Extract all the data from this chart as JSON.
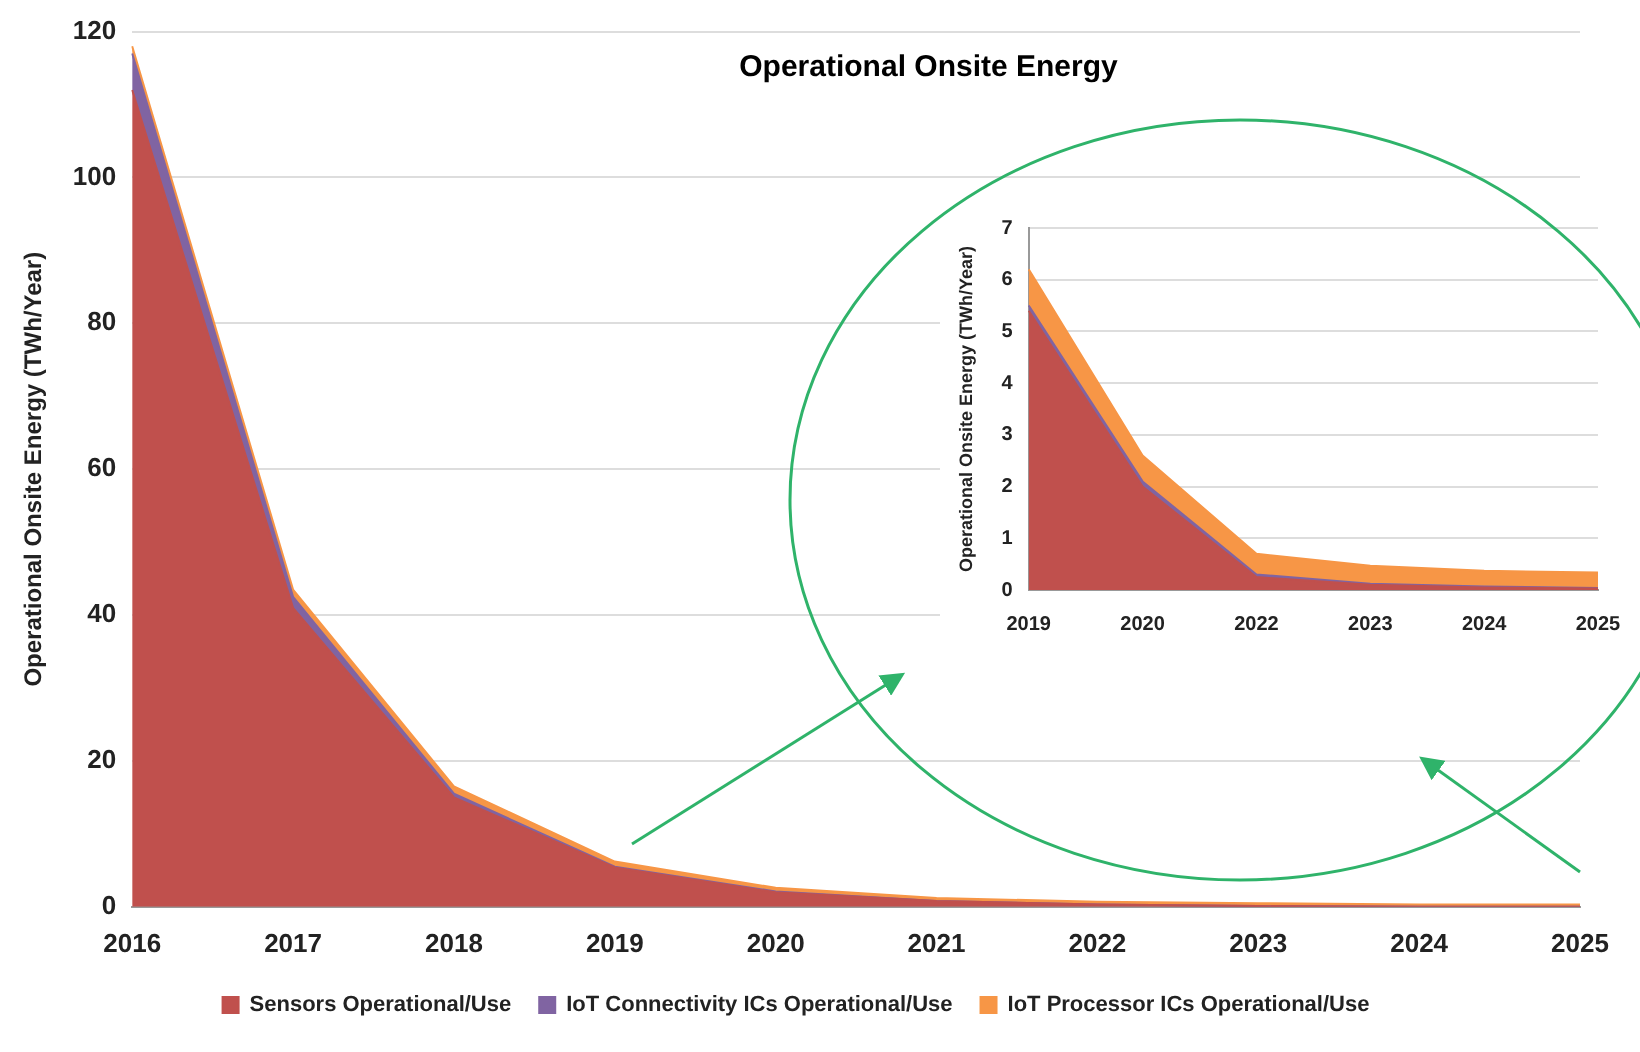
{
  "chart_data": [
    {
      "type": "area",
      "title": "Operational Onsite Energy",
      "ylabel": "Operational Onsite Energy (TWh/Year)",
      "categories": [
        "2016",
        "2017",
        "2018",
        "2019",
        "2020",
        "2021",
        "2022",
        "2023",
        "2024",
        "2025"
      ],
      "stacked": true,
      "ylim": [
        0,
        120
      ],
      "yticks": [
        0,
        20,
        40,
        60,
        80,
        100,
        120
      ],
      "grid": "y",
      "legend": "bottom",
      "series": [
        {
          "name": "Sensors Operational/Use",
          "color": "#c0504d",
          "values": [
            112,
            41,
            15,
            5.4,
            2,
            0.8,
            0.3,
            0.1,
            0,
            0
          ]
        },
        {
          "name": "IoT Connectivity ICs Operational/Use",
          "color": "#8064a2",
          "values": [
            5,
            1.5,
            0.5,
            0.1,
            0.1,
            0,
            0,
            0,
            0,
            0
          ]
        },
        {
          "name": "IoT Processor ICs Operational/Use",
          "color": "#f79646",
          "values": [
            1,
            1,
            1,
            0.7,
            0.5,
            0.4,
            0.4,
            0.4,
            0.3,
            0.3
          ]
        }
      ]
    },
    {
      "type": "area",
      "ylabel": "Operational Onsite Energy (TWh/Year)",
      "categories": [
        "2019",
        "2020",
        "2022",
        "2023",
        "2024",
        "2025"
      ],
      "stacked": true,
      "ylim": [
        0,
        7
      ],
      "yticks": [
        0,
        1,
        2,
        3,
        4,
        5,
        6,
        7
      ],
      "grid": "y",
      "series": [
        {
          "color": "#c0504d",
          "values": [
            5.4,
            2,
            0.25,
            0.1,
            0.05,
            0.03
          ]
        },
        {
          "color": "#8064a2",
          "values": [
            0.1,
            0.1,
            0.05,
            0.02,
            0.02,
            0.01
          ]
        },
        {
          "color": "#f79646",
          "values": [
            0.7,
            0.5,
            0.4,
            0.35,
            0.3,
            0.3
          ]
        }
      ]
    }
  ]
}
